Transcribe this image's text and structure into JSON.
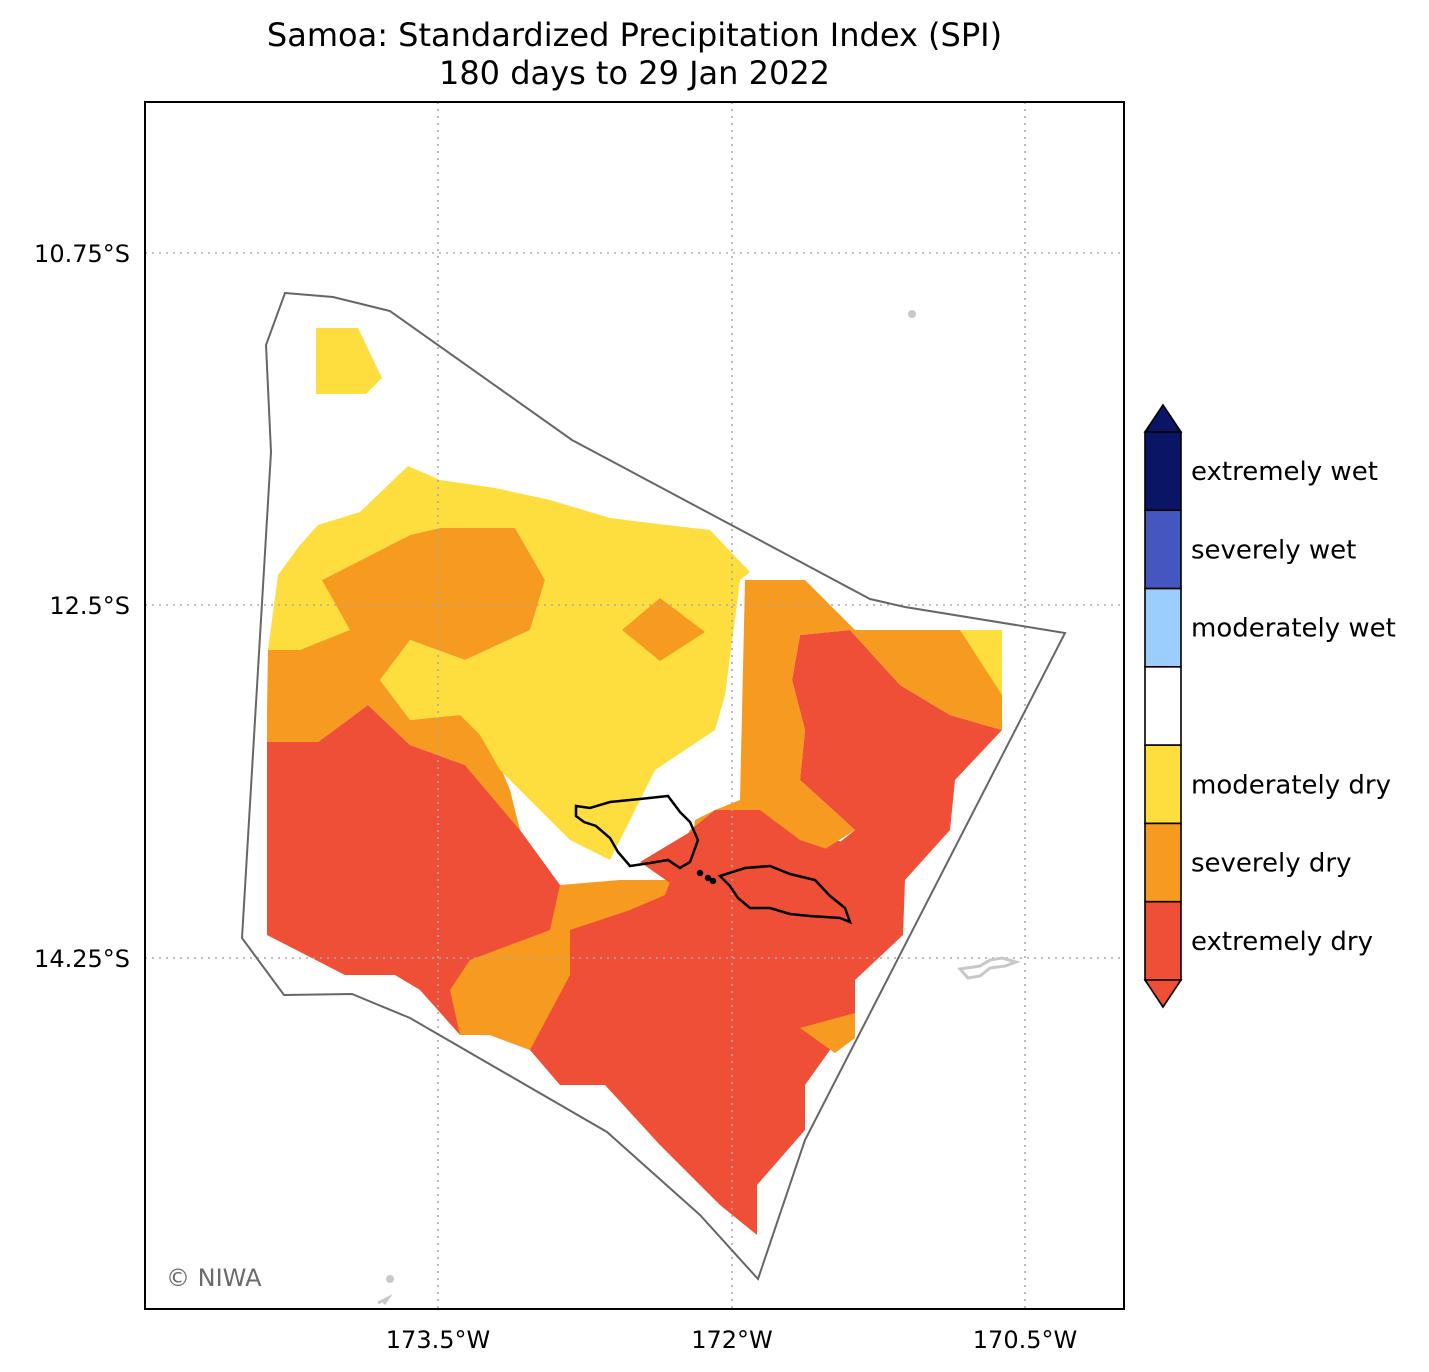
{
  "title": {
    "line1": "Samoa: Standardized Precipitation Index (SPI)",
    "line2": "180 days to 29 Jan 2022"
  },
  "axes": {
    "lat_labels": [
      "10.75°S",
      "12.5°S",
      "14.25°S"
    ],
    "lon_labels": [
      "173.5°W",
      "172°W",
      "170.5°W"
    ],
    "gridlines": "dotted"
  },
  "legend": {
    "placement": "right",
    "categories": [
      {
        "label": "extremely wet",
        "color": "#0a1565"
      },
      {
        "label": "severely wet",
        "color": "#4656c0"
      },
      {
        "label": "moderately wet",
        "color": "#9bcefd"
      },
      {
        "label": "",
        "color": "#ffffff"
      },
      {
        "label": "moderately dry",
        "color": "#fedd3e"
      },
      {
        "label": "severely dry",
        "color": "#f79b20"
      },
      {
        "label": "extremely dry",
        "color": "#ef4f37"
      }
    ],
    "extend_top_color": "#0a1565",
    "extend_bottom_color": "#ef4f37"
  },
  "map": {
    "region": "Samoa EEZ",
    "colors": {
      "eez_outline": "#666666",
      "island_outline": "#000000",
      "neighbor_islands": "#c8c8c8",
      "gridline": "#aaaaaa"
    }
  },
  "copyright": "© NIWA"
}
